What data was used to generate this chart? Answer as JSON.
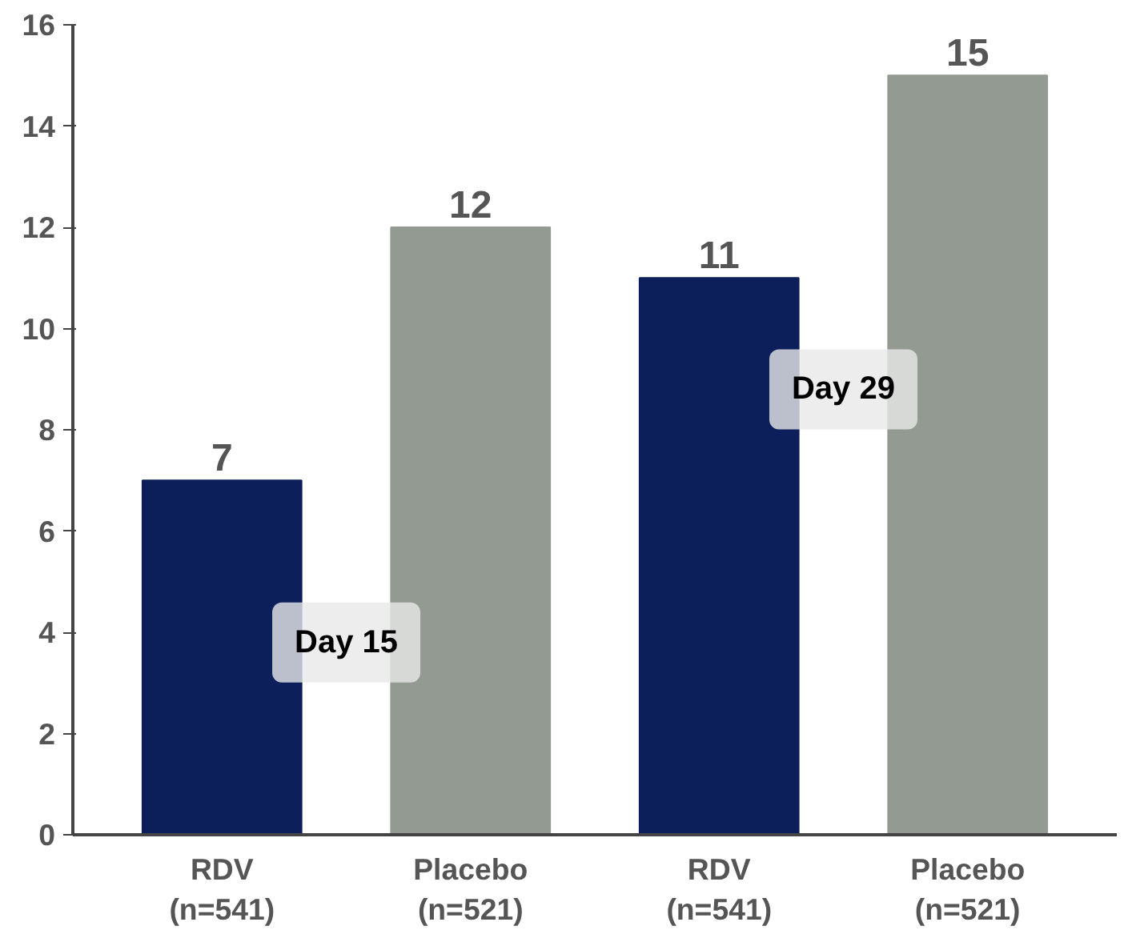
{
  "chart_data": {
    "type": "bar",
    "categories": [
      "RDV\n(n=541)",
      "Placebo\n(n=521)",
      "RDV\n(n=541)",
      "Placebo\n(n=521)"
    ],
    "values": [
      7,
      12,
      11,
      15
    ],
    "colors": [
      "#0c1f5a",
      "#939a91",
      "#0c1f5a",
      "#939a91"
    ],
    "ylim": [
      0,
      16
    ],
    "yticks": [
      0,
      2,
      4,
      6,
      8,
      10,
      12,
      14,
      16
    ],
    "data_labels": true,
    "grid": false,
    "annotations": [
      "Day 15",
      "Day 29"
    ]
  }
}
